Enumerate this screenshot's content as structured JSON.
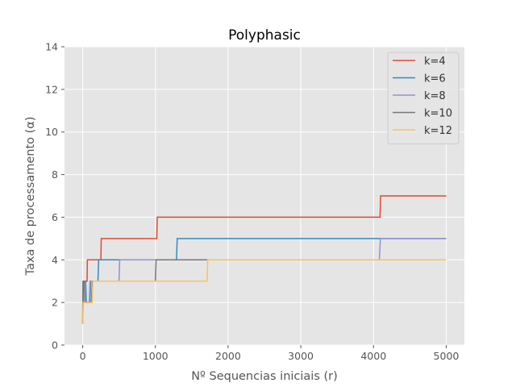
{
  "chart_data": {
    "type": "line",
    "title": "Polyphasic",
    "xlabel": "Nº Sequencias iniciais (r)",
    "ylabel": "Taxa de processamento (α)",
    "xlim": [
      -250,
      5250
    ],
    "ylim": [
      0,
      14
    ],
    "xticks": [
      0,
      1000,
      2000,
      3000,
      4000,
      5000
    ],
    "yticks": [
      0,
      2,
      4,
      6,
      8,
      10,
      12,
      14
    ],
    "grid": true,
    "legend_position": "top-right",
    "series": [
      {
        "name": "k=4",
        "color": "#E24A33",
        "points": [
          [
            1,
            1
          ],
          [
            2,
            2
          ],
          [
            3,
            2
          ],
          [
            4,
            2
          ],
          [
            5,
            3
          ],
          [
            60,
            3
          ],
          [
            65,
            4
          ],
          [
            250,
            4
          ],
          [
            256,
            5
          ],
          [
            1020,
            5
          ],
          [
            1025,
            6
          ],
          [
            4090,
            6
          ],
          [
            4097,
            7
          ],
          [
            5000,
            7
          ]
        ]
      },
      {
        "name": "k=6",
        "color": "#348ABD",
        "points": [
          [
            1,
            1
          ],
          [
            3,
            2
          ],
          [
            6,
            3
          ],
          [
            40,
            3
          ],
          [
            50,
            2
          ],
          [
            100,
            2
          ],
          [
            110,
            3
          ],
          [
            210,
            3
          ],
          [
            220,
            4
          ],
          [
            1290,
            4
          ],
          [
            1300,
            5
          ],
          [
            5000,
            5
          ]
        ]
      },
      {
        "name": "k=8",
        "color": "#988ED5",
        "points": [
          [
            1,
            1
          ],
          [
            4,
            2
          ],
          [
            90,
            2
          ],
          [
            100,
            3
          ],
          [
            500,
            3
          ],
          [
            510,
            4
          ],
          [
            4080,
            4
          ],
          [
            4095,
            5
          ],
          [
            5000,
            5
          ]
        ]
      },
      {
        "name": "k=10",
        "color": "#777777",
        "points": [
          [
            1,
            1
          ],
          [
            5,
            2
          ],
          [
            10,
            3
          ],
          [
            20,
            3
          ],
          [
            30,
            2
          ],
          [
            120,
            2
          ],
          [
            135,
            3
          ],
          [
            1000,
            3
          ],
          [
            1010,
            4
          ],
          [
            5000,
            4
          ]
        ]
      },
      {
        "name": "k=12",
        "color": "#FBC15E",
        "points": [
          [
            1,
            1
          ],
          [
            6,
            2
          ],
          [
            130,
            2
          ],
          [
            140,
            3
          ],
          [
            1710,
            3
          ],
          [
            1720,
            4
          ],
          [
            5000,
            4
          ]
        ]
      }
    ]
  }
}
